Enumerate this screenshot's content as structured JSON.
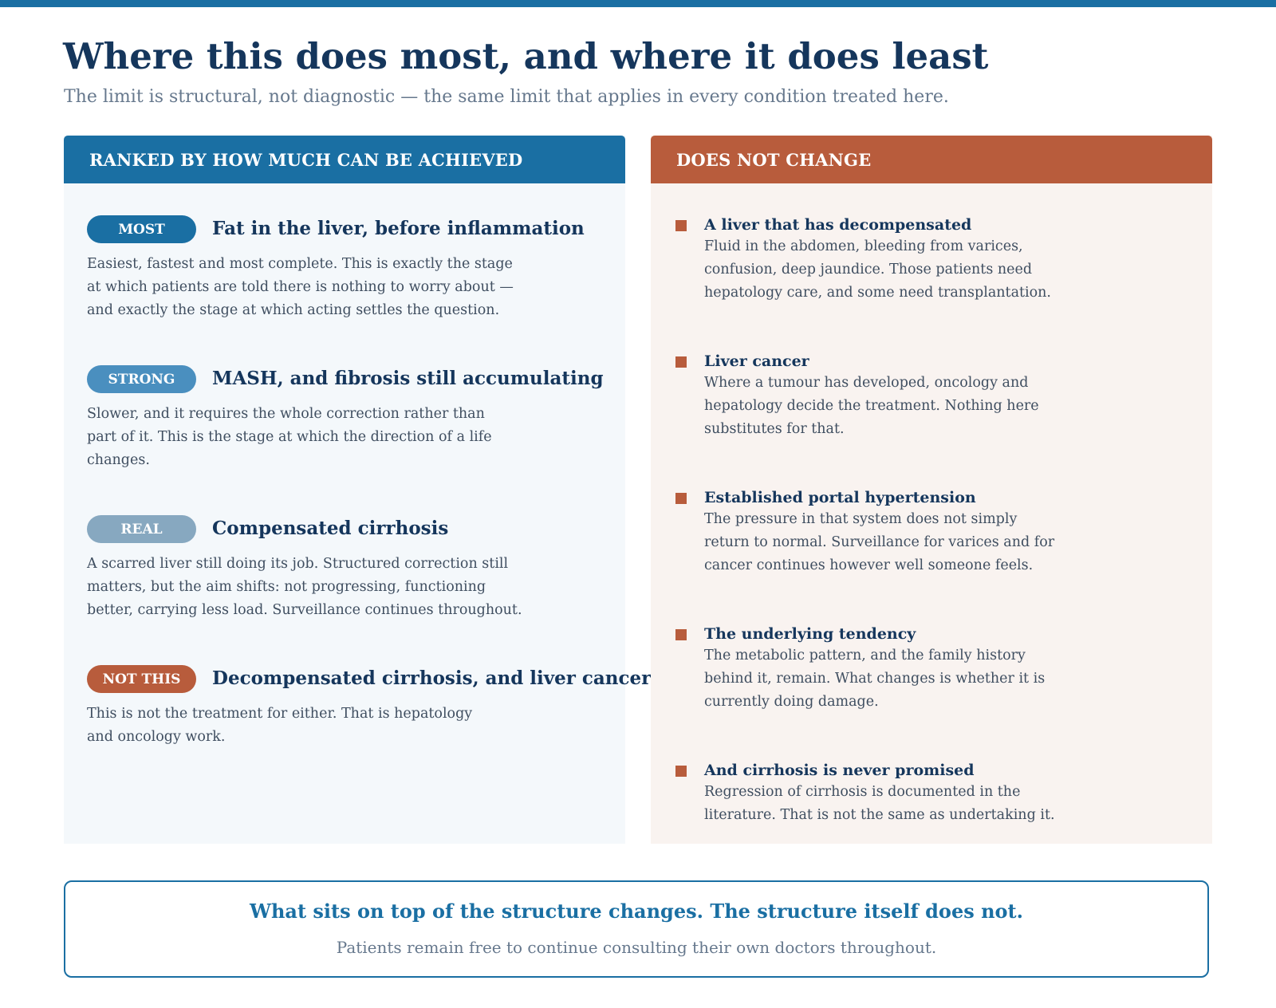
{
  "header": {
    "title": "Where this does most, and where it does least",
    "subtitle": "The limit is structural, not diagnostic — the same limit that applies in every condition treated here."
  },
  "ranked": {
    "heading": "RANKED BY HOW MUCH CAN BE ACHIEVED",
    "items": [
      {
        "badge": "MOST",
        "badge_color": "#1a6fa3",
        "title": "Fat in the liver, before inflammation",
        "description": "Easiest, fastest and most complete. This is exactly the stage at which patients are told there is nothing to worry about — and exactly the stage at which acting settles the question."
      },
      {
        "badge": "STRONG",
        "badge_color": "#4a8fbf",
        "title": "MASH, and fibrosis still accumulating",
        "description": "Slower, and it requires the whole correction rather than part of it. This is the stage at which the direction of a life changes."
      },
      {
        "badge": "REAL",
        "badge_color": "#87a8c0",
        "title": "Compensated cirrhosis",
        "description": "A scarred liver still doing its job. Structured correction still matters, but the aim shifts: not progressing, functioning better, carrying less load. Surveillance continues throughout."
      },
      {
        "badge": "NOT THIS",
        "badge_color": "#b85c3c",
        "title": "Decompensated cirrhosis, and liver cancer",
        "description": "This is not the treatment for either. That is hepatology and oncology work."
      }
    ]
  },
  "unchanged": {
    "heading": "DOES NOT CHANGE",
    "items": [
      {
        "title": "A liver that has decompensated",
        "description": "Fluid in the abdomen, bleeding from varices, confusion, deep jaundice. Those patients need hepatology care, and some need transplantation."
      },
      {
        "title": "Liver cancer",
        "description": "Where a tumour has developed, oncology and hepatology decide the treatment. Nothing here substitutes for that."
      },
      {
        "title": "Established portal hypertension",
        "description": "The pressure in that system does not simply return to normal. Surveillance for varices and for cancer continues however well someone feels."
      },
      {
        "title": "The underlying tendency",
        "description": "The metabolic pattern, and the family history behind it, remain. What changes is whether it is currently doing damage."
      },
      {
        "title": "And cirrhosis is never promised",
        "description": "Regression of cirrhosis is documented in the literature. That is not the same as undertaking it."
      }
    ]
  },
  "footer": {
    "headline": "What sits on top of the structure changes. The structure itself does not.",
    "subtext": "Patients remain free to continue consulting their own doctors throughout."
  },
  "colors": {
    "primary_blue": "#1a6fa3",
    "rust": "#b85c3c",
    "navy_text": "#15365c"
  }
}
